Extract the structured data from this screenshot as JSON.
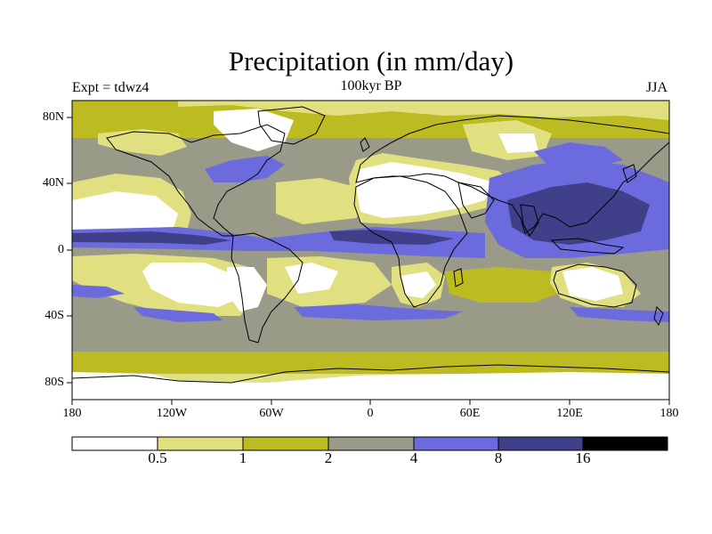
{
  "title": "Precipitation (in mm/day)",
  "experiment_label": "Expt = tdwz4",
  "period_label": "100kyr BP",
  "season_label": "JJA",
  "map": {
    "projection": "cylindrical equidistant",
    "lon_range": [
      -180,
      180
    ],
    "lat_range": [
      -90,
      90
    ],
    "x_ticks": [
      "180",
      "120W",
      "60W",
      "0",
      "60E",
      "120E",
      "180"
    ],
    "y_ticks": [
      "80N",
      "40N",
      "0",
      "40S",
      "80S"
    ]
  },
  "colorbar": {
    "levels": [
      "0.5",
      "1",
      "2",
      "4",
      "8",
      "16"
    ],
    "colors": [
      "#ffffff",
      "#e0e080",
      "#bcbc22",
      "#9a9a88",
      "#6b6bdd",
      "#40408a",
      "#000000"
    ]
  }
}
